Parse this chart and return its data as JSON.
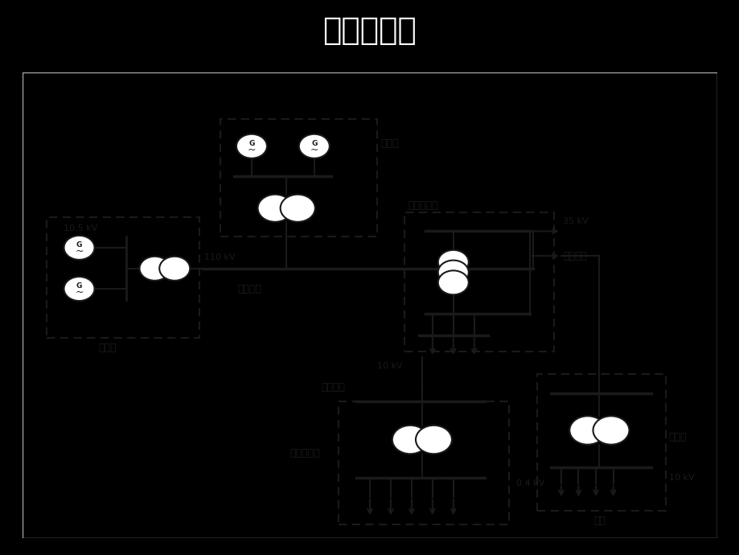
{
  "title": "电力系统图",
  "title_color": "#ffffff",
  "bg_color": "#000000",
  "diagram_bg": "#f0eeea",
  "lc": "#1a1a1a",
  "labels": {
    "fadianc_left": "发电厂",
    "fadianc_top": "发电厂",
    "songdian1": "送电线路",
    "songdian2": "送电线路",
    "quyubian": "区域变电所",
    "peidian": "配电线路",
    "yonghu_jiao": "用户交电所",
    "biandiansuo": "变电所",
    "yonghu": "用户",
    "v105": "10.5 kV",
    "v110": "110 kV",
    "v10a": "10 kV",
    "v35": "35 kV",
    "v10b": "10 kV",
    "v04": "0.4 kV"
  }
}
